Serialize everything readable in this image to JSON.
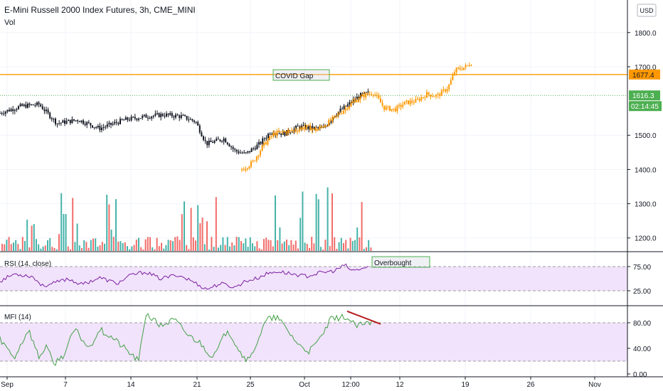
{
  "header": {
    "title": "E-Mini Russell 2000 Index Futures, 3h, CME_MINI",
    "sub_label": "Vol"
  },
  "currency": "USD",
  "price_axis": {
    "ticks": [
      "1800.0",
      "1700.0",
      "1500.0",
      "1400.0",
      "1300.0",
      "1200.0"
    ],
    "tick_values": [
      1800,
      1700,
      1500,
      1400,
      1300,
      1200
    ],
    "range": [
      1160,
      1895
    ]
  },
  "badges": {
    "level": "1677.4",
    "last_price": "1616.3",
    "countdown": "02:14:45"
  },
  "annotations": {
    "covid_gap": "COVID Gap",
    "overbought": "Overbought"
  },
  "rsi": {
    "label": "RSI (14, close)",
    "ticks": [
      "75.00",
      "25.00"
    ]
  },
  "mfi": {
    "label": "MFI (14)",
    "ticks": [
      "80.00",
      "40.00",
      "0.00"
    ]
  },
  "time_axis": {
    "labels": [
      "Sep",
      "7",
      "14",
      "21",
      "25",
      "Oct",
      "12:00",
      "12",
      "19",
      "26",
      "Nov"
    ]
  },
  "colors": {
    "up": "#26a69a",
    "down": "#ef5350",
    "orange": "#ff9800",
    "rsi_line": "#7b1fa2",
    "mfi_line": "#43a047",
    "band_fill": "#f1e3fb",
    "green_badge": "#4caf50",
    "trend": "#b71c1c"
  },
  "chart_data": [
    {
      "type": "candlestick",
      "title": "E-Mini Russell 2000 Index Futures, 3h, CME_MINI",
      "x": [
        "Sep",
        "7",
        "14",
        "21",
        "25",
        "Oct",
        "12:00",
        "12",
        "19",
        "26",
        "Nov"
      ],
      "ylim": [
        1160,
        1895
      ],
      "series": [
        {
          "name": "",
          "color": "#131722",
          "keypoints": [
            [
              0,
              1565
            ],
            [
              30,
              1585
            ],
            [
              55,
              1590
            ],
            [
              80,
              1535
            ],
            [
              110,
              1545
            ],
            [
              140,
              1520
            ],
            [
              175,
              1545
            ],
            [
              205,
              1555
            ],
            [
              230,
              1560
            ],
            [
              255,
              1555
            ],
            [
              275,
              1540
            ],
            [
              290,
              1475
            ],
            [
              315,
              1490
            ],
            [
              330,
              1455
            ],
            [
              345,
              1445
            ],
            [
              365,
              1475
            ],
            [
              380,
              1510
            ],
            [
              400,
              1505
            ],
            [
              420,
              1525
            ],
            [
              440,
              1520
            ],
            [
              455,
              1520
            ],
            [
              470,
              1560
            ],
            [
              490,
              1590
            ],
            [
              505,
              1615
            ],
            [
              520,
              1625
            ]
          ]
        },
        {
          "name": "",
          "color": "#ff9800",
          "keypoints": [
            [
              340,
              1400
            ],
            [
              355,
              1420
            ],
            [
              370,
              1470
            ],
            [
              385,
              1505
            ],
            [
              400,
              1510
            ],
            [
              415,
              1515
            ],
            [
              430,
              1525
            ],
            [
              445,
              1515
            ],
            [
              460,
              1535
            ],
            [
              475,
              1560
            ],
            [
              495,
              1595
            ],
            [
              510,
              1615
            ],
            [
              525,
              1625
            ],
            [
              540,
              1580
            ],
            [
              555,
              1575
            ],
            [
              570,
              1595
            ],
            [
              585,
              1600
            ],
            [
              600,
              1620
            ],
            [
              615,
              1615
            ],
            [
              630,
              1640
            ],
            [
              640,
              1690
            ],
            [
              655,
              1700
            ],
            [
              665,
              1715
            ]
          ]
        }
      ],
      "horizontal_lines": [
        1677.4,
        1616.3
      ]
    },
    {
      "type": "line",
      "title": "RSI (14, close)",
      "ylim": [
        0,
        100
      ],
      "bands": [
        25,
        75
      ],
      "series": [
        {
          "name": "RSI",
          "color": "#7b1fa2",
          "keypoints": [
            [
              0,
              45
            ],
            [
              20,
              60
            ],
            [
              45,
              55
            ],
            [
              60,
              35
            ],
            [
              75,
              40
            ],
            [
              95,
              50
            ],
            [
              115,
              38
            ],
            [
              140,
              52
            ],
            [
              165,
              40
            ],
            [
              185,
              58
            ],
            [
              205,
              64
            ],
            [
              225,
              50
            ],
            [
              250,
              58
            ],
            [
              270,
              45
            ],
            [
              290,
              28
            ],
            [
              310,
              40
            ],
            [
              330,
              32
            ],
            [
              345,
              45
            ],
            [
              360,
              50
            ],
            [
              375,
              60
            ],
            [
              390,
              65
            ],
            [
              410,
              60
            ],
            [
              430,
              55
            ],
            [
              450,
              62
            ],
            [
              470,
              66
            ],
            [
              485,
              78
            ],
            [
              495,
              66
            ],
            [
              510,
              71
            ],
            [
              520,
              75
            ]
          ]
        }
      ]
    },
    {
      "type": "line",
      "title": "MFI (14)",
      "ylim": [
        0,
        100
      ],
      "bands": [
        20,
        80
      ],
      "series": [
        {
          "name": "MFI",
          "color": "#43a047",
          "keypoints": [
            [
              0,
              55
            ],
            [
              20,
              25
            ],
            [
              40,
              70
            ],
            [
              55,
              25
            ],
            [
              65,
              45
            ],
            [
              75,
              15
            ],
            [
              90,
              30
            ],
            [
              105,
              70
            ],
            [
              125,
              40
            ],
            [
              140,
              70
            ],
            [
              160,
              55
            ],
            [
              180,
              35
            ],
            [
              195,
              20
            ],
            [
              205,
              95
            ],
            [
              225,
              75
            ],
            [
              245,
              85
            ],
            [
              265,
              60
            ],
            [
              280,
              50
            ],
            [
              300,
              25
            ],
            [
              320,
              70
            ],
            [
              340,
              30
            ],
            [
              350,
              20
            ],
            [
              365,
              60
            ],
            [
              375,
              85
            ],
            [
              390,
              88
            ],
            [
              410,
              60
            ],
            [
              420,
              45
            ],
            [
              435,
              35
            ],
            [
              450,
              55
            ],
            [
              465,
              85
            ],
            [
              485,
              90
            ],
            [
              500,
              75
            ],
            [
              515,
              78
            ],
            [
              525,
              80
            ]
          ]
        }
      ],
      "trend_line": {
        "from": [
          488,
          98
        ],
        "to": [
          535,
          78
        ]
      }
    }
  ]
}
